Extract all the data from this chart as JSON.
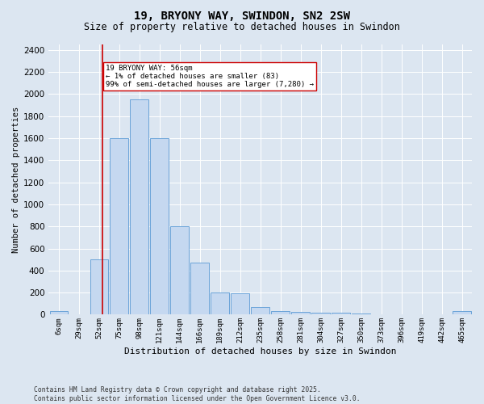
{
  "title": "19, BRYONY WAY, SWINDON, SN2 2SW",
  "subtitle": "Size of property relative to detached houses in Swindon",
  "xlabel": "Distribution of detached houses by size in Swindon",
  "ylabel": "Number of detached properties",
  "footer": "Contains HM Land Registry data © Crown copyright and database right 2025.\nContains public sector information licensed under the Open Government Licence v3.0.",
  "categories": [
    "6sqm",
    "29sqm",
    "52sqm",
    "75sqm",
    "98sqm",
    "121sqm",
    "144sqm",
    "166sqm",
    "189sqm",
    "212sqm",
    "235sqm",
    "258sqm",
    "281sqm",
    "304sqm",
    "327sqm",
    "350sqm",
    "373sqm",
    "396sqm",
    "419sqm",
    "442sqm",
    "465sqm"
  ],
  "values": [
    30,
    0,
    500,
    1600,
    1950,
    1600,
    800,
    470,
    200,
    190,
    70,
    30,
    25,
    15,
    15,
    10,
    0,
    0,
    0,
    0,
    30
  ],
  "bar_color": "#c5d8f0",
  "bar_edge_color": "#5b9bd5",
  "vline_color": "#cc0000",
  "annotation_text": "19 BRYONY WAY: 56sqm\n← 1% of detached houses are smaller (83)\n99% of semi-detached houses are larger (7,280) →",
  "annotation_box_color": "#ffffff",
  "annotation_box_edge": "#cc0000",
  "ylim": [
    0,
    2450
  ],
  "yticks": [
    0,
    200,
    400,
    600,
    800,
    1000,
    1200,
    1400,
    1600,
    1800,
    2000,
    2200,
    2400
  ],
  "bg_color": "#dce6f1",
  "plot_bg_color": "#dce6f1",
  "title_fontsize": 10,
  "subtitle_fontsize": 8.5
}
